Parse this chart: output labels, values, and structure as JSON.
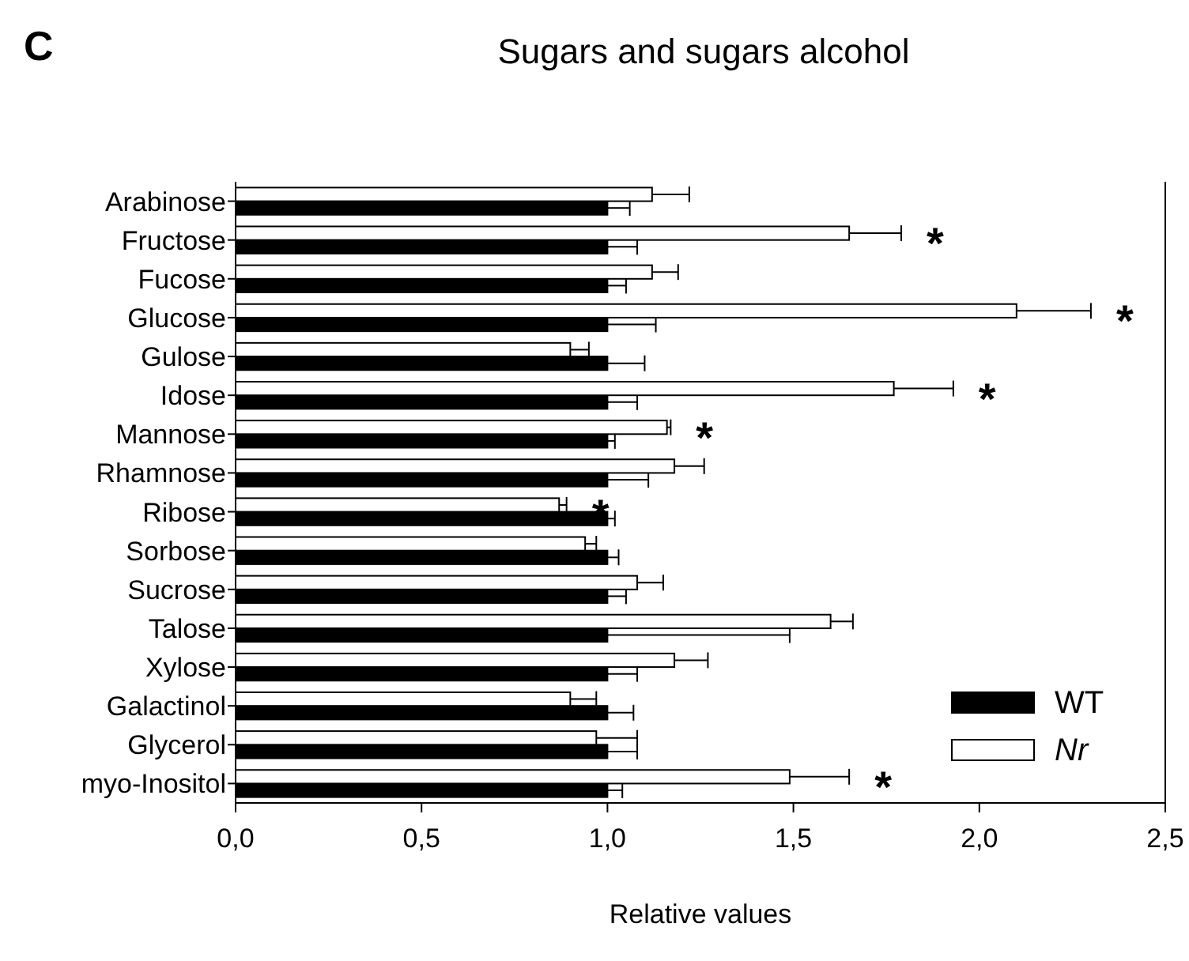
{
  "chart_data": {
    "type": "bar",
    "orientation": "horizontal",
    "title": "Sugars and sugars alcohol",
    "xlabel": "Relative values",
    "categories": [
      "Arabinose",
      "Fructose",
      "Fucose",
      "Glucose",
      "Gulose",
      "Idose",
      "Mannose",
      "Rhamnose",
      "Ribose",
      "Sorbose",
      "Sucrose",
      "Talose",
      "Xylose",
      "Galactinol",
      "Glycerol",
      "myo-Inositol"
    ],
    "series": [
      {
        "name": "WT",
        "color": "#000000",
        "values": [
          1,
          1,
          1,
          1,
          1,
          1,
          1,
          1,
          1,
          1,
          1,
          1,
          1,
          1,
          1,
          1
        ],
        "errors": [
          [
            1,
            1.06
          ],
          [
            1,
            1.08
          ],
          [
            1,
            1.05
          ],
          [
            1,
            1.13
          ],
          [
            1,
            1.1
          ],
          [
            1,
            1.08
          ],
          [
            1,
            1.02
          ],
          [
            1,
            1.11
          ],
          [
            1,
            1.02
          ],
          [
            1,
            1.03
          ],
          [
            1,
            1.05
          ],
          [
            1,
            1.49
          ],
          [
            1,
            1.08
          ],
          [
            1,
            1.07
          ],
          [
            1,
            1.08
          ],
          [
            1,
            1.04
          ]
        ]
      },
      {
        "name": "Nr",
        "color": "#ffffff",
        "values": [
          1.12,
          1.65,
          1.12,
          2.1,
          0.9,
          1.77,
          1.16,
          1.18,
          0.87,
          0.94,
          1.08,
          1.6,
          1.18,
          0.9,
          0.97,
          1.49
        ],
        "errors": [
          [
            1.12,
            1.22
          ],
          [
            1.65,
            1.79
          ],
          [
            1.12,
            1.19
          ],
          [
            2.1,
            2.3
          ],
          [
            0.9,
            0.95
          ],
          [
            1.77,
            1.93
          ],
          [
            1.16,
            1.17
          ],
          [
            1.18,
            1.26
          ],
          [
            0.87,
            0.89
          ],
          [
            0.94,
            0.97
          ],
          [
            1.08,
            1.15
          ],
          [
            1.6,
            1.66
          ],
          [
            1.18,
            1.27
          ],
          [
            0.9,
            0.97
          ],
          [
            0.97,
            1.08
          ],
          [
            1.49,
            1.65
          ]
        ]
      }
    ],
    "xlim": [
      0,
      2.5
    ],
    "xticks": [
      {
        "value": 0,
        "label": "0,0"
      },
      {
        "value": 0.5,
        "label": "0,5"
      },
      {
        "value": 1,
        "label": "1,0"
      },
      {
        "value": 1.5,
        "label": "1,5"
      },
      {
        "value": 2,
        "label": "2,0"
      },
      {
        "value": 2.5,
        "label": "2,5"
      }
    ],
    "legend": "bottom right",
    "grid": false,
    "annotations": [
      "C",
      {
        "text": "*",
        "x": 1.79,
        "y": "Fructose"
      },
      {
        "text": "*",
        "x": 2.3,
        "y": "Glucose"
      },
      {
        "text": "*",
        "x": 1.93,
        "y": "Idose"
      },
      {
        "text": "*",
        "x": 1.17,
        "y": "Mannose"
      },
      {
        "text": "*",
        "x": 0.89,
        "y": "Ribose"
      },
      {
        "text": "*",
        "x": 1.65,
        "y": "myo-Inositol"
      }
    ]
  }
}
